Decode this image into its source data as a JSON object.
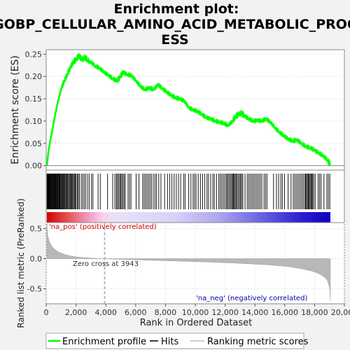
{
  "chart_data": {
    "title_lines": [
      "Enrichment plot:",
      "GOBP_CELLULAR_AMINO_ACID_METABOLIC_PROC",
      "ESS"
    ],
    "type": "line",
    "top_panel": {
      "ylabel": "Enrichment score (ES)",
      "ylim": [
        -0.01,
        0.26
      ],
      "yticks": [
        "0.00",
        "0.05",
        "0.10",
        "0.15",
        "0.20",
        "0.25"
      ],
      "ytick_values": [
        0.0,
        0.05,
        0.1,
        0.15,
        0.2,
        0.25
      ],
      "series": [
        {
          "name": "Enrichment profile",
          "color": "#00ff00",
          "x": [
            0,
            100,
            250,
            400,
            600,
            800,
            1000,
            1200,
            1400,
            1600,
            1800,
            2000,
            2200,
            2400,
            2600,
            2800,
            3000,
            3300,
            3600,
            3900,
            4200,
            4500,
            4800,
            5000,
            5200,
            5500,
            5800,
            6100,
            6400,
            6700,
            7000,
            7300,
            7600,
            7900,
            8200,
            8500,
            8800,
            9100,
            9400,
            9700,
            10000,
            10300,
            10600,
            10900,
            11200,
            11500,
            11800,
            12100,
            12400,
            12700,
            12900,
            13100,
            13300,
            13500,
            13800,
            14100,
            14400,
            14700,
            15000,
            15300,
            15600,
            15900,
            16200,
            16500,
            16800,
            17100,
            17400,
            17700,
            18000,
            18300,
            18600,
            18900,
            19200,
            19390
          ],
          "values": [
            0.0,
            0.03,
            0.06,
            0.085,
            0.12,
            0.15,
            0.175,
            0.19,
            0.205,
            0.22,
            0.232,
            0.238,
            0.247,
            0.237,
            0.243,
            0.236,
            0.233,
            0.223,
            0.219,
            0.21,
            0.203,
            0.195,
            0.19,
            0.198,
            0.21,
            0.204,
            0.202,
            0.19,
            0.178,
            0.17,
            0.175,
            0.17,
            0.182,
            0.173,
            0.165,
            0.158,
            0.152,
            0.15,
            0.145,
            0.13,
            0.125,
            0.122,
            0.115,
            0.108,
            0.105,
            0.1,
            0.098,
            0.095,
            0.09,
            0.1,
            0.11,
            0.115,
            0.118,
            0.112,
            0.105,
            0.1,
            0.102,
            0.1,
            0.105,
            0.097,
            0.085,
            0.075,
            0.067,
            0.06,
            0.055,
            0.058,
            0.05,
            0.043,
            0.04,
            0.035,
            0.028,
            0.022,
            0.012,
            0.002
          ]
        }
      ]
    },
    "hits_panel": {
      "hit_ranks": [
        10,
        30,
        55,
        80,
        110,
        140,
        175,
        205,
        240,
        275,
        310,
        350,
        390,
        420,
        460,
        500,
        540,
        575,
        610,
        650,
        690,
        730,
        770,
        820,
        860,
        900,
        950,
        1000,
        1050,
        1100,
        1150,
        1200,
        1250,
        1310,
        1370,
        1420,
        1480,
        1540,
        1590,
        1650,
        1710,
        1760,
        1820,
        1880,
        1940,
        2000,
        2080,
        2150,
        2220,
        2350,
        2450,
        2550,
        2650,
        2780,
        2900,
        3050,
        3150,
        3500,
        3650,
        4150,
        4500,
        4650,
        4750,
        4820,
        4900,
        4980,
        5050,
        5120,
        5200,
        5280,
        5360,
        5550,
        5650,
        5750,
        6100,
        6300,
        6550,
        6650,
        6750,
        6850,
        6950,
        7050,
        7150,
        7280,
        7400,
        7500,
        7650,
        7800,
        8050,
        8250,
        8400,
        8550,
        8700,
        8850,
        9000,
        9150,
        9350,
        9450,
        9700,
        9850,
        10000,
        10100,
        10200,
        10350,
        10500,
        10650,
        10800,
        10950,
        11050,
        11200,
        11350,
        11450,
        11600,
        11750,
        11850,
        11950,
        12050,
        12150,
        12250,
        12320,
        12400,
        12480,
        12560,
        12640,
        12700,
        12760,
        12820,
        12880,
        12950,
        13020,
        13100,
        13180,
        13250,
        13320,
        13400,
        13550,
        13700,
        13800,
        13900,
        14000,
        14100,
        14200,
        14300,
        14400,
        14500,
        14600,
        14700,
        14850,
        14950,
        15050,
        15500,
        15700,
        15850,
        16000,
        16100,
        16250,
        16500,
        16700,
        16850,
        16950,
        17050,
        17150,
        17250,
        17350,
        17450,
        17550,
        17650,
        17700,
        17760,
        17820,
        17880,
        17940,
        18000,
        18060,
        18120,
        18180,
        18250,
        18350,
        18550,
        18650,
        18750,
        18950,
        19150,
        19250,
        19350
      ]
    },
    "metric_panel": {
      "ylabel": "Ranked list metric (PreRanked)",
      "xlabel": "Rank in Ordered Dataset",
      "ylim": [
        -0.75,
        0.6
      ],
      "yticks": [
        "0.5",
        "0.0",
        "-0.5"
      ],
      "ytick_values": [
        0.5,
        0.0,
        -0.5
      ],
      "xlim": [
        0,
        20000
      ],
      "xticks": [
        "0",
        "2,000",
        "4,000",
        "6,000",
        "8,000",
        "10,000",
        "12,000",
        "14,000",
        "16,000",
        "18,000",
        "20,000"
      ],
      "xtick_values": [
        0,
        2000,
        4000,
        6000,
        8000,
        10000,
        12000,
        14000,
        16000,
        18000,
        20000
      ],
      "metric_x": [
        0,
        50,
        150,
        300,
        500,
        800,
        1200,
        1600,
        2000,
        2500,
        3000,
        3500,
        3943,
        5000,
        7000,
        9000,
        11000,
        13000,
        15000,
        16500,
        17500,
        18200,
        18700,
        19000,
        19200,
        19300,
        19360,
        19390
      ],
      "metric_y": [
        0.58,
        0.4,
        0.3,
        0.22,
        0.16,
        0.11,
        0.07,
        0.045,
        0.03,
        0.018,
        0.01,
        0.004,
        0.0,
        -0.01,
        -0.025,
        -0.04,
        -0.055,
        -0.075,
        -0.1,
        -0.13,
        -0.17,
        -0.21,
        -0.26,
        -0.31,
        -0.37,
        -0.45,
        -0.55,
        -0.7
      ],
      "zero_cross_rank": 3943,
      "zero_cross_label": "Zero cross at 3943",
      "pos_label": "'na_pos' (positively correlated)",
      "neg_label": "'na_neg' (negatively correlated)"
    },
    "legend": [
      {
        "label": "Enrichment profile",
        "color": "#00ff00"
      },
      {
        "label": "Hits",
        "color": "#000000"
      },
      {
        "label": "Ranking metric scores",
        "color": "#bbbbbb"
      }
    ],
    "colors": {
      "pos_label": "#cc0000",
      "neg_label": "#0000aa",
      "background": "#f2f2f2",
      "fill": "#b8b8b8"
    }
  }
}
